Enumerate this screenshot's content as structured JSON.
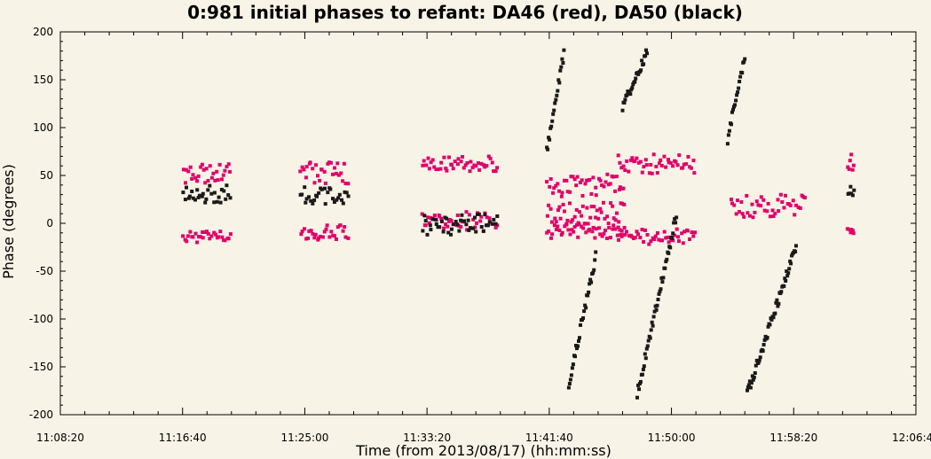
{
  "chart_data": {
    "type": "scatter",
    "title": "0:981 initial phases to refant: DA46 (red), DA50 (black)",
    "xlabel": "Time (from 2013/08/17) (hh:mm:ss)",
    "ylabel": "Phase (degrees)",
    "xlim": [
      "11:08:20",
      "12:06:40"
    ],
    "ylim": [
      -200,
      200
    ],
    "x_ticks": [
      "11:08:20",
      "11:16:40",
      "11:25:00",
      "11:33:20",
      "11:41:40",
      "11:50:00",
      "11:58:20",
      "12:06:40"
    ],
    "y_ticks": [
      -200,
      -150,
      -100,
      -50,
      0,
      50,
      100,
      150,
      200
    ],
    "grid": false,
    "series": [
      {
        "color": "#e0006a",
        "clusters": [
          {
            "t_start": "11:16:40",
            "t_end": "11:20:00",
            "levels": [
              {
                "center": 52,
                "spread": 10
              },
              {
                "center": -14,
                "spread": 6
              }
            ]
          },
          {
            "t_start": "11:24:40",
            "t_end": "11:28:00",
            "levels": [
              {
                "center": 52,
                "spread": 12
              },
              {
                "center": -10,
                "spread": 8
              }
            ]
          },
          {
            "t_start": "11:33:00",
            "t_end": "11:38:10",
            "levels": [
              {
                "center": 62,
                "spread": 8
              },
              {
                "center": 2,
                "spread": 10
              }
            ]
          },
          {
            "t_start": "11:41:30",
            "t_end": "11:46:50",
            "levels": [
              {
                "center": 40,
                "spread": 12
              },
              {
                "center": 10,
                "spread": 12
              },
              {
                "center": -8,
                "spread": 8
              }
            ]
          },
          {
            "t_start": "11:46:20",
            "t_end": "11:51:40",
            "levels": [
              {
                "center": 62,
                "spread": 10
              },
              {
                "center": -14,
                "spread": 8
              }
            ]
          },
          {
            "t_start": "11:54:00",
            "t_end": "11:59:10",
            "levels": [
              {
                "center": 18,
                "spread": 12
              }
            ]
          },
          {
            "t_start": "12:02:00",
            "t_end": "12:02:30",
            "levels": [
              {
                "center": 60,
                "spread": 14
              },
              {
                "center": -8,
                "spread": 6
              }
            ]
          }
        ]
      },
      {
        "color": "#1a1a1a",
        "clusters": [
          {
            "t_start": "11:16:40",
            "t_end": "11:20:00",
            "levels": [
              {
                "center": 30,
                "spread": 10
              }
            ]
          },
          {
            "t_start": "11:24:40",
            "t_end": "11:28:00",
            "levels": [
              {
                "center": 30,
                "spread": 10
              }
            ]
          },
          {
            "t_start": "11:33:00",
            "t_end": "11:38:10",
            "levels": [
              {
                "center": -2,
                "spread": 12
              }
            ]
          },
          {
            "t_start": "12:02:00",
            "t_end": "12:02:30",
            "levels": [
              {
                "center": 33,
                "spread": 6
              }
            ]
          }
        ],
        "ramps": [
          {
            "t_start": "11:41:30",
            "t_end": "11:42:40",
            "phase_start": 75,
            "phase_end": 178
          },
          {
            "t_start": "11:43:00",
            "t_end": "11:44:50",
            "phase_start": -168,
            "phase_end": -35
          },
          {
            "t_start": "11:46:40",
            "t_end": "11:48:20",
            "phase_start": 122,
            "phase_end": 178
          },
          {
            "t_start": "11:47:40",
            "t_end": "11:50:20",
            "phase_start": -178,
            "phase_end": 8
          },
          {
            "t_start": "11:53:50",
            "t_end": "11:55:00",
            "phase_start": 88,
            "phase_end": 176
          },
          {
            "t_start": "11:55:10",
            "t_end": "11:58:30",
            "phase_start": -178,
            "phase_end": -25
          }
        ]
      }
    ]
  }
}
